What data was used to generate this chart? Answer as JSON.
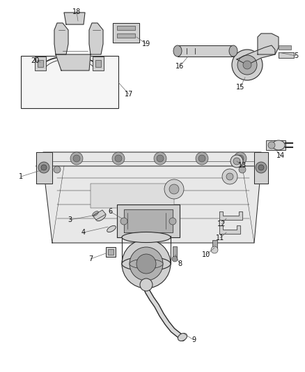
{
  "bg_color": "#ffffff",
  "line_color": "#2a2a2a",
  "light_fill": "#e8e8e8",
  "mid_fill": "#d0d0d0",
  "dark_fill": "#b0b0b0",
  "label_fontsize": 7.0,
  "leader_color": "#555555"
}
